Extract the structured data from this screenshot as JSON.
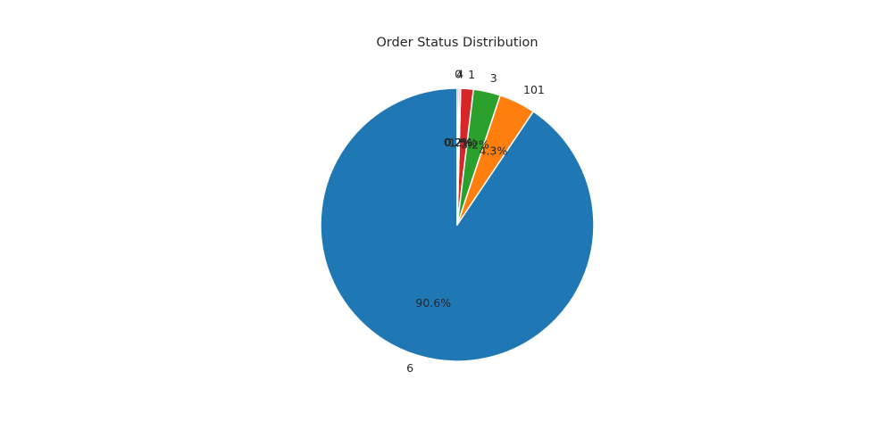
{
  "chart_data": {
    "type": "pie",
    "title": "Order Status Distribution",
    "start_angle_deg": 90,
    "direction": "counterclockwise",
    "slices": [
      {
        "label": "6",
        "value": 90.6,
        "pct_label": "90.6%",
        "color": "#1f77b4"
      },
      {
        "label": "101",
        "value": 4.3,
        "pct_label": "4.3%",
        "color": "#ff7f0e"
      },
      {
        "label": "3",
        "value": 3.2,
        "pct_label": "3.2%",
        "color": "#2ca02c"
      },
      {
        "label": "1",
        "value": 1.5,
        "pct_label": "1.5%",
        "color": "#d62728"
      },
      {
        "label": "4",
        "value": 0.2,
        "pct_label": "0.2%",
        "color": "#9467bd"
      },
      {
        "label": "0",
        "value": 0.2,
        "pct_label": "0.2%",
        "color": "#8c564b"
      }
    ]
  }
}
